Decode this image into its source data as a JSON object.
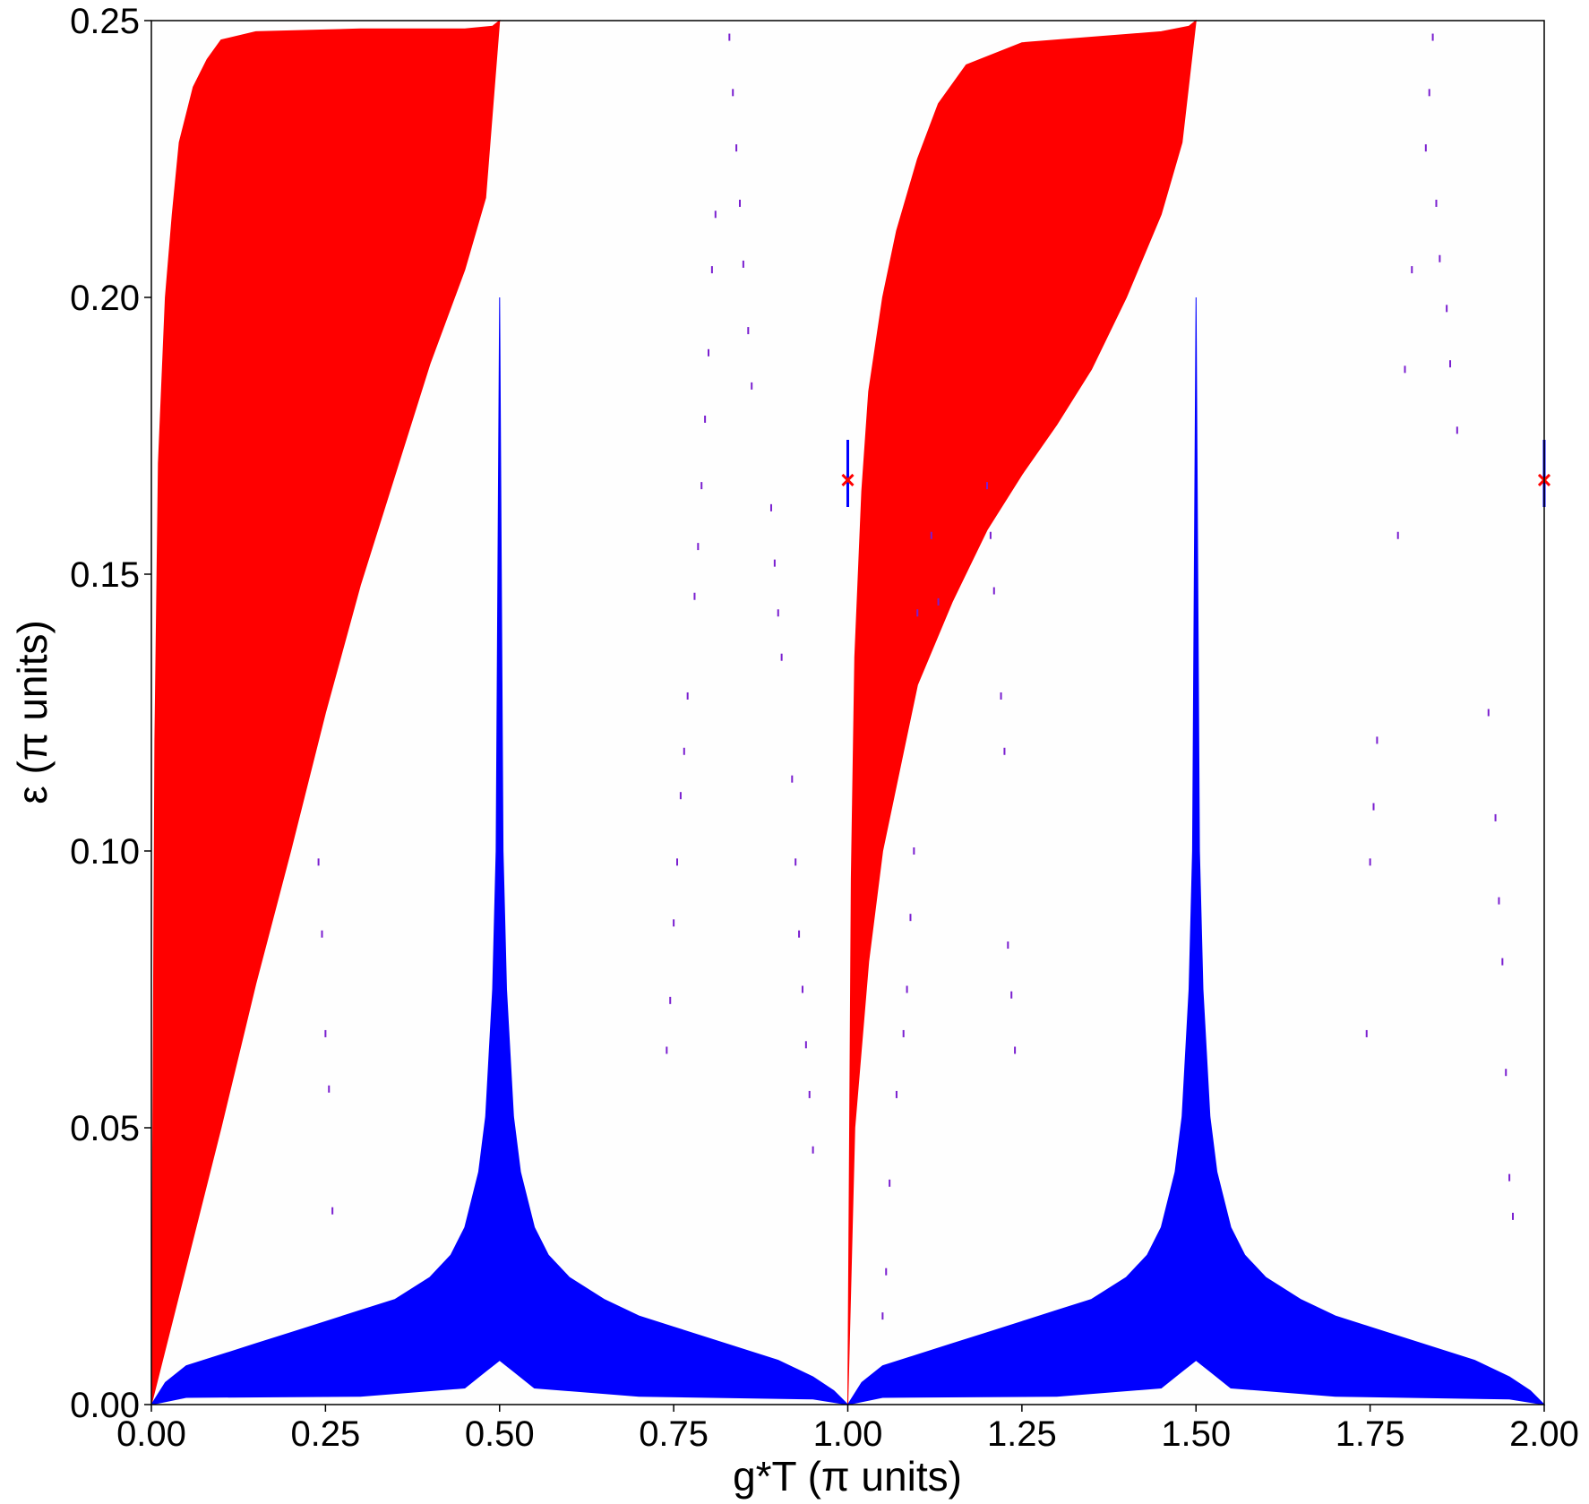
{
  "chart_data": {
    "type": "area",
    "title": "",
    "xlabel": "g*T (π units)",
    "ylabel": "ε (π units)",
    "xlim": [
      0.0,
      2.0
    ],
    "ylim": [
      0.0,
      0.25
    ],
    "grid": false,
    "legend": "none",
    "x_ticks": [
      "0.00",
      "0.25",
      "0.50",
      "0.75",
      "1.00",
      "1.25",
      "1.50",
      "1.75",
      "2.00"
    ],
    "y_ticks": [
      "0.00",
      "0.05",
      "0.10",
      "0.15",
      "0.20",
      "0.25"
    ],
    "colors": {
      "red_region": "#ff0000",
      "blue_region": "#0000ff",
      "dots": "#7a1fd0"
    },
    "series": [
      {
        "color": "#ff0000",
        "regions": [
          {
            "upper": [
              [
                0.0,
                0.0
              ],
              [
                0.005,
                0.12
              ],
              [
                0.01,
                0.17
              ],
              [
                0.02,
                0.2
              ],
              [
                0.03,
                0.215
              ],
              [
                0.04,
                0.228
              ],
              [
                0.06,
                0.238
              ],
              [
                0.08,
                0.243
              ],
              [
                0.1,
                0.2465
              ],
              [
                0.15,
                0.248
              ],
              [
                0.3,
                0.2485
              ],
              [
                0.45,
                0.2485
              ],
              [
                0.49,
                0.249
              ],
              [
                0.5,
                0.25
              ]
            ],
            "lower": [
              [
                0.0,
                0.0
              ],
              [
                0.05,
                0.025
              ],
              [
                0.1,
                0.05
              ],
              [
                0.15,
                0.076
              ],
              [
                0.2,
                0.1
              ],
              [
                0.25,
                0.125
              ],
              [
                0.3,
                0.148
              ],
              [
                0.35,
                0.168
              ],
              [
                0.4,
                0.188
              ],
              [
                0.45,
                0.205
              ],
              [
                0.48,
                0.218
              ],
              [
                0.5,
                0.25
              ]
            ]
          },
          {
            "upper": [
              [
                1.0,
                0.0
              ],
              [
                1.005,
                0.095
              ],
              [
                1.01,
                0.135
              ],
              [
                1.02,
                0.165
              ],
              [
                1.03,
                0.183
              ],
              [
                1.05,
                0.2
              ],
              [
                1.07,
                0.212
              ],
              [
                1.1,
                0.225
              ],
              [
                1.13,
                0.235
              ],
              [
                1.17,
                0.242
              ],
              [
                1.25,
                0.246
              ],
              [
                1.35,
                0.247
              ],
              [
                1.45,
                0.248
              ],
              [
                1.49,
                0.249
              ],
              [
                1.5,
                0.25
              ]
            ],
            "lower": [
              [
                1.0,
                0.0
              ],
              [
                1.01,
                0.05
              ],
              [
                1.03,
                0.08
              ],
              [
                1.05,
                0.1
              ],
              [
                1.08,
                0.118
              ],
              [
                1.1,
                0.13
              ],
              [
                1.15,
                0.145
              ],
              [
                1.2,
                0.158
              ],
              [
                1.25,
                0.168
              ],
              [
                1.3,
                0.177
              ],
              [
                1.35,
                0.187
              ],
              [
                1.4,
                0.2
              ],
              [
                1.45,
                0.215
              ],
              [
                1.48,
                0.228
              ],
              [
                1.5,
                0.25
              ]
            ]
          }
        ]
      },
      {
        "color": "#0000ff",
        "regions": [
          {
            "upper": [
              [
                0.0,
                0.0
              ],
              [
                0.02,
                0.004
              ],
              [
                0.05,
                0.007
              ],
              [
                0.1,
                0.009
              ],
              [
                0.15,
                0.011
              ],
              [
                0.2,
                0.013
              ],
              [
                0.25,
                0.015
              ],
              [
                0.3,
                0.017
              ],
              [
                0.35,
                0.019
              ],
              [
                0.4,
                0.023
              ],
              [
                0.43,
                0.027
              ],
              [
                0.45,
                0.032
              ],
              [
                0.47,
                0.042
              ],
              [
                0.48,
                0.052
              ],
              [
                0.49,
                0.075
              ],
              [
                0.495,
                0.1
              ],
              [
                0.5,
                0.2
              ],
              [
                0.505,
                0.1
              ],
              [
                0.51,
                0.075
              ],
              [
                0.52,
                0.052
              ],
              [
                0.53,
                0.042
              ],
              [
                0.55,
                0.032
              ],
              [
                0.57,
                0.027
              ],
              [
                0.6,
                0.023
              ],
              [
                0.65,
                0.019
              ],
              [
                0.7,
                0.016
              ],
              [
                0.75,
                0.014
              ],
              [
                0.8,
                0.012
              ],
              [
                0.85,
                0.01
              ],
              [
                0.9,
                0.008
              ],
              [
                0.95,
                0.005
              ],
              [
                0.98,
                0.0025
              ],
              [
                1.0,
                0.0
              ]
            ],
            "lower": [
              [
                0.0,
                0.0
              ],
              [
                0.05,
                0.0013
              ],
              [
                0.3,
                0.0015
              ],
              [
                0.45,
                0.003
              ],
              [
                0.48,
                0.006
              ],
              [
                0.5,
                0.008
              ],
              [
                0.52,
                0.006
              ],
              [
                0.55,
                0.003
              ],
              [
                0.7,
                0.0015
              ],
              [
                0.95,
                0.001
              ],
              [
                1.0,
                0.0
              ]
            ]
          },
          {
            "upper": [
              [
                1.0,
                0.0
              ],
              [
                1.02,
                0.004
              ],
              [
                1.05,
                0.007
              ],
              [
                1.1,
                0.009
              ],
              [
                1.15,
                0.011
              ],
              [
                1.2,
                0.013
              ],
              [
                1.25,
                0.015
              ],
              [
                1.3,
                0.017
              ],
              [
                1.35,
                0.019
              ],
              [
                1.4,
                0.023
              ],
              [
                1.43,
                0.027
              ],
              [
                1.45,
                0.032
              ],
              [
                1.47,
                0.042
              ],
              [
                1.48,
                0.052
              ],
              [
                1.49,
                0.075
              ],
              [
                1.495,
                0.1
              ],
              [
                1.5,
                0.2
              ],
              [
                1.505,
                0.1
              ],
              [
                1.51,
                0.075
              ],
              [
                1.52,
                0.052
              ],
              [
                1.53,
                0.042
              ],
              [
                1.55,
                0.032
              ],
              [
                1.57,
                0.027
              ],
              [
                1.6,
                0.023
              ],
              [
                1.65,
                0.019
              ],
              [
                1.7,
                0.016
              ],
              [
                1.75,
                0.014
              ],
              [
                1.8,
                0.012
              ],
              [
                1.85,
                0.01
              ],
              [
                1.9,
                0.008
              ],
              [
                1.95,
                0.005
              ],
              [
                1.98,
                0.0025
              ],
              [
                2.0,
                0.0
              ]
            ],
            "lower": [
              [
                1.0,
                0.0
              ],
              [
                1.05,
                0.0013
              ],
              [
                1.3,
                0.0015
              ],
              [
                1.45,
                0.003
              ],
              [
                1.48,
                0.006
              ],
              [
                1.5,
                0.008
              ],
              [
                1.52,
                0.006
              ],
              [
                1.55,
                0.003
              ],
              [
                1.7,
                0.0015
              ],
              [
                1.95,
                0.001
              ],
              [
                2.0,
                0.0
              ]
            ]
          }
        ]
      }
    ],
    "scattered_points": [
      [
        0.83,
        0.247
      ],
      [
        0.835,
        0.237
      ],
      [
        0.84,
        0.227
      ],
      [
        0.845,
        0.217
      ],
      [
        0.85,
        0.206
      ],
      [
        0.857,
        0.194
      ],
      [
        0.862,
        0.184
      ],
      [
        0.81,
        0.215
      ],
      [
        0.805,
        0.205
      ],
      [
        0.8,
        0.19
      ],
      [
        0.795,
        0.178
      ],
      [
        0.79,
        0.166
      ],
      [
        0.785,
        0.155
      ],
      [
        0.78,
        0.146
      ],
      [
        0.89,
        0.162
      ],
      [
        0.895,
        0.152
      ],
      [
        0.9,
        0.143
      ],
      [
        0.905,
        0.135
      ],
      [
        0.77,
        0.128
      ],
      [
        0.765,
        0.118
      ],
      [
        0.76,
        0.11
      ],
      [
        0.755,
        0.098
      ],
      [
        0.75,
        0.087
      ],
      [
        0.745,
        0.073
      ],
      [
        0.74,
        0.064
      ],
      [
        0.92,
        0.113
      ],
      [
        0.925,
        0.098
      ],
      [
        0.93,
        0.085
      ],
      [
        0.935,
        0.075
      ],
      [
        0.94,
        0.065
      ],
      [
        0.945,
        0.056
      ],
      [
        0.95,
        0.046
      ],
      [
        0.24,
        0.098
      ],
      [
        0.245,
        0.085
      ],
      [
        0.25,
        0.067
      ],
      [
        0.255,
        0.057
      ],
      [
        0.26,
        0.035
      ],
      [
        1.05,
        0.016
      ],
      [
        1.055,
        0.024
      ],
      [
        1.06,
        0.04
      ],
      [
        1.07,
        0.056
      ],
      [
        1.08,
        0.067
      ],
      [
        1.085,
        0.075
      ],
      [
        1.09,
        0.088
      ],
      [
        1.095,
        0.1
      ],
      [
        1.1,
        0.143
      ],
      [
        1.12,
        0.157
      ],
      [
        1.13,
        0.145
      ],
      [
        1.2,
        0.166
      ],
      [
        1.205,
        0.157
      ],
      [
        1.21,
        0.147
      ],
      [
        1.22,
        0.128
      ],
      [
        1.225,
        0.118
      ],
      [
        1.23,
        0.083
      ],
      [
        1.235,
        0.074
      ],
      [
        1.24,
        0.064
      ],
      [
        1.84,
        0.247
      ],
      [
        1.835,
        0.237
      ],
      [
        1.83,
        0.227
      ],
      [
        1.845,
        0.217
      ],
      [
        1.85,
        0.207
      ],
      [
        1.86,
        0.198
      ],
      [
        1.865,
        0.188
      ],
      [
        1.875,
        0.176
      ],
      [
        1.81,
        0.205
      ],
      [
        1.8,
        0.187
      ],
      [
        1.79,
        0.157
      ],
      [
        1.76,
        0.12
      ],
      [
        1.755,
        0.108
      ],
      [
        1.75,
        0.098
      ],
      [
        1.745,
        0.067
      ],
      [
        1.92,
        0.125
      ],
      [
        1.93,
        0.106
      ],
      [
        1.935,
        0.091
      ],
      [
        1.94,
        0.08
      ],
      [
        1.945,
        0.06
      ],
      [
        1.95,
        0.041
      ],
      [
        1.955,
        0.034
      ]
    ],
    "markers": [
      {
        "x": 1.0,
        "y": 0.167,
        "symbol": "x"
      },
      {
        "x": 2.0,
        "y": 0.167,
        "symbol": "x"
      }
    ]
  }
}
